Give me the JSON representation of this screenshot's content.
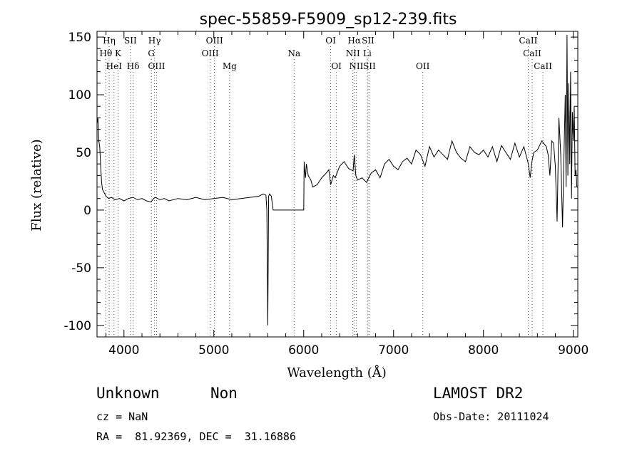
{
  "chart_data": {
    "type": "line",
    "title": "spec-55859-F5909_sp12-239.fits",
    "xlabel": "Wavelength (Å)",
    "ylabel": "Flux (relative)",
    "xlim": [
      3700,
      9050
    ],
    "ylim": [
      -110,
      155
    ],
    "xticks": [
      4000,
      5000,
      6000,
      7000,
      8000,
      9000
    ],
    "yticks": [
      -100,
      -50,
      0,
      50,
      100,
      150
    ],
    "grid": false,
    "series": [
      {
        "values_approx_note": "",
        "x": [
          3700,
          3710,
          3720,
          3730,
          3740,
          3750,
          3760,
          3780,
          3800,
          3830,
          3860,
          3900,
          3950,
          4000,
          4050,
          4100,
          4150,
          4200,
          4250,
          4300,
          4330,
          4350,
          4400,
          4450,
          4500,
          4600,
          4700,
          4800,
          4900,
          5000,
          5100,
          5200,
          5300,
          5400,
          5500,
          5550,
          5580,
          5590,
          5600,
          5610,
          5620,
          5640,
          5660,
          5700,
          5800,
          5900,
          6000,
          6005,
          6010,
          6020,
          6030,
          6050,
          6080,
          6100,
          6150,
          6200,
          6250,
          6280,
          6300,
          6330,
          6350,
          6380,
          6400,
          6450,
          6500,
          6550,
          6563,
          6580,
          6600,
          6650,
          6700,
          6750,
          6800,
          6850,
          6900,
          6950,
          7000,
          7050,
          7100,
          7150,
          7200,
          7250,
          7300,
          7350,
          7400,
          7450,
          7500,
          7550,
          7600,
          7650,
          7700,
          7750,
          7800,
          7850,
          7900,
          7950,
          8000,
          8050,
          8100,
          8150,
          8200,
          8250,
          8300,
          8350,
          8400,
          8450,
          8500,
          8520,
          8540,
          8560,
          8600,
          8650,
          8700,
          8720,
          8740,
          8760,
          8780,
          8800,
          8820,
          8840,
          8860,
          8880,
          8900,
          8910,
          8920,
          8930,
          8940,
          8950,
          8960,
          8970,
          8980,
          8990,
          9000,
          9010,
          9020,
          9030,
          9040
        ],
        "y": [
          75,
          80,
          60,
          55,
          40,
          25,
          18,
          15,
          12,
          10,
          11,
          9,
          10,
          8,
          10,
          11,
          9,
          10,
          8,
          7,
          10,
          11,
          9,
          10,
          8,
          10,
          9,
          11,
          9,
          10,
          11,
          9,
          10,
          11,
          12,
          14,
          13,
          0,
          -100,
          12,
          14,
          12,
          0,
          0,
          0,
          0,
          0,
          42,
          36,
          28,
          40,
          30,
          26,
          20,
          22,
          28,
          32,
          35,
          22,
          30,
          28,
          34,
          38,
          42,
          36,
          34,
          48,
          30,
          26,
          28,
          24,
          32,
          35,
          28,
          40,
          44,
          38,
          35,
          42,
          45,
          40,
          52,
          48,
          38,
          55,
          46,
          52,
          48,
          44,
          60,
          50,
          45,
          42,
          55,
          50,
          48,
          52,
          46,
          55,
          42,
          56,
          50,
          44,
          58,
          46,
          55,
          40,
          28,
          42,
          50,
          52,
          60,
          55,
          48,
          30,
          60,
          58,
          38,
          -10,
          80,
          48,
          -15,
          62,
          100,
          20,
          152,
          30,
          110,
          40,
          120,
          10,
          85,
          60,
          90,
          30,
          35,
          20
        ]
      }
    ],
    "spectral_lines": [
      {
        "name": "Hη",
        "wl": 3835,
        "row": 0
      },
      {
        "name": "Hθ",
        "wl": 3798,
        "row": 1
      },
      {
        "name": "K",
        "wl": 3934,
        "row": 1
      },
      {
        "name": "HeI",
        "wl": 3889,
        "row": 2
      },
      {
        "name": "SII",
        "wl": 4072,
        "row": 0
      },
      {
        "name": "Hδ",
        "wl": 4102,
        "row": 2
      },
      {
        "name": "Hγ",
        "wl": 4340,
        "row": 0
      },
      {
        "name": "G",
        "wl": 4305,
        "row": 1
      },
      {
        "name": "OIII",
        "wl": 4363,
        "row": 2
      },
      {
        "name": "OIII",
        "wl": 5007,
        "row": 0
      },
      {
        "name": "OIII",
        "wl": 4959,
        "row": 1
      },
      {
        "name": "Mg",
        "wl": 5175,
        "row": 2
      },
      {
        "name": "Na",
        "wl": 5893,
        "row": 1
      },
      {
        "name": "OI",
        "wl": 6300,
        "row": 0
      },
      {
        "name": "OI",
        "wl": 6364,
        "row": 2
      },
      {
        "name": "Hα",
        "wl": 6563,
        "row": 0
      },
      {
        "name": "SII",
        "wl": 6716,
        "row": 0
      },
      {
        "name": "NII",
        "wl": 6548,
        "row": 1
      },
      {
        "name": "Li",
        "wl": 6708,
        "row": 1
      },
      {
        "name": "NII",
        "wl": 6584,
        "row": 2
      },
      {
        "name": "SII",
        "wl": 6731,
        "row": 2
      },
      {
        "name": "OII",
        "wl": 7325,
        "row": 2
      },
      {
        "name": "CaII",
        "wl": 8498,
        "row": 0
      },
      {
        "name": "CaII",
        "wl": 8542,
        "row": 1
      },
      {
        "name": "CaII",
        "wl": 8662,
        "row": 2
      }
    ],
    "line_colors": {
      "balmer": "#cc0000",
      "other": "#555555"
    }
  },
  "info": {
    "class": "Unknown",
    "subclass": "Non",
    "cz": "cz = NaN",
    "coords": "RA =  81.92369, DEC =  31.16886",
    "survey": "LAMOST DR2",
    "obs_date": "Obs-Date: 20111024"
  }
}
